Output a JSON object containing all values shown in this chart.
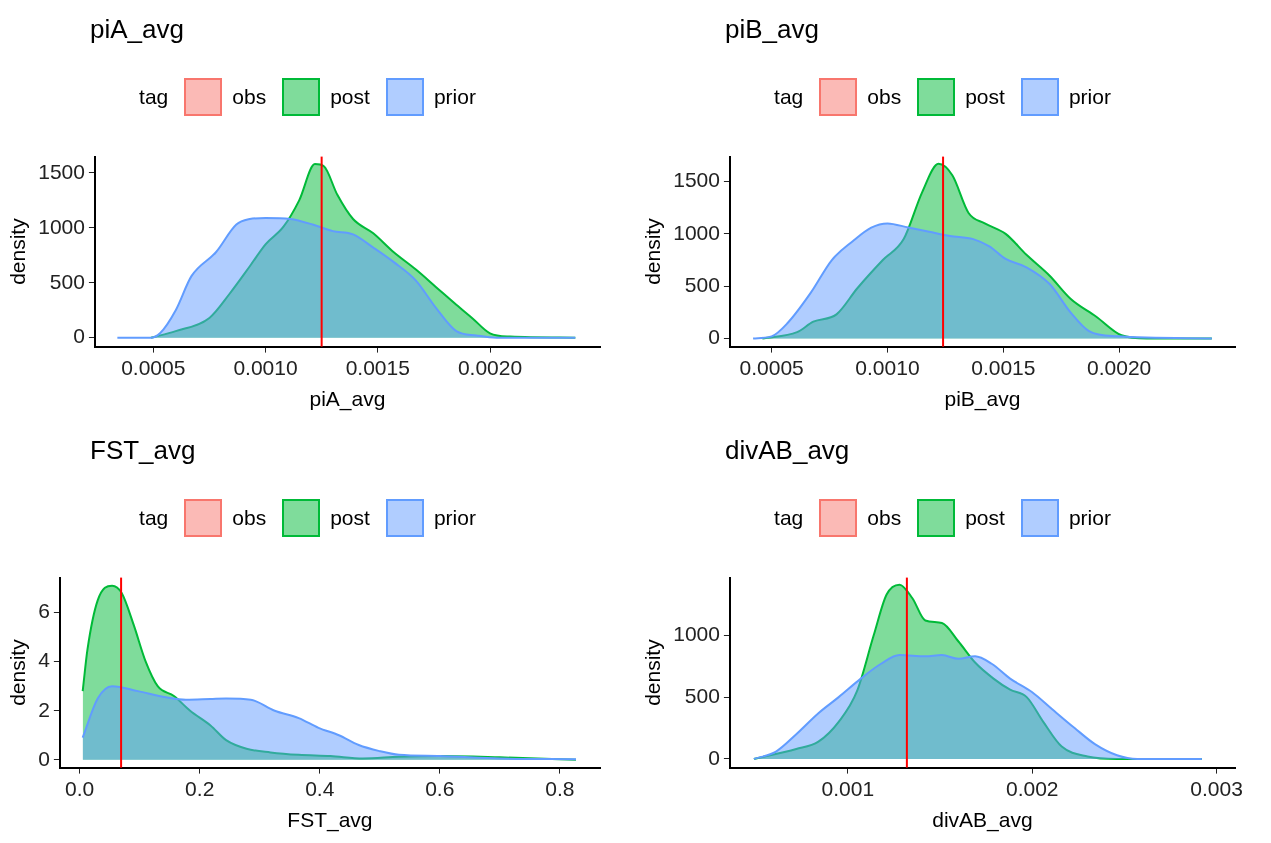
{
  "chart_data": [
    {
      "type": "area",
      "title": "piA_avg",
      "xlabel": "piA_avg",
      "ylabel": "density",
      "legend_title": "tag",
      "legend": "top",
      "grid": false,
      "xlim": [
        0.00024,
        0.00249
      ],
      "ylim": [
        -81,
        1648
      ],
      "xticks": [
        {
          "value": 0.0005,
          "label": "0.0005"
        },
        {
          "value": 0.001,
          "label": "0.0010"
        },
        {
          "value": 0.0015,
          "label": "0.0015"
        },
        {
          "value": 0.002,
          "label": "0.0020"
        }
      ],
      "yticks": [
        0,
        500,
        1000,
        1500
      ],
      "series": [
        {
          "name": "obs",
          "color": "#f8766d"
        },
        {
          "name": "post",
          "color": "#00ba38",
          "x": [
            0.00049,
            0.0006,
            0.00075,
            0.00084,
            0.00093,
            0.001,
            0.00108,
            0.00115,
            0.00122,
            0.00126,
            0.00132,
            0.00139,
            0.00148,
            0.00157,
            0.00167,
            0.00176,
            0.00185,
            0.00192,
            0.002,
            0.00209,
            0.00238
          ],
          "values": [
            0,
            60,
            180,
            400,
            650,
            850,
            1010,
            1250,
            1580,
            1560,
            1300,
            1080,
            950,
            780,
            620,
            460,
            300,
            180,
            40,
            10,
            0
          ]
        },
        {
          "name": "prior",
          "color": "#619cff",
          "x": [
            0.00034,
            0.00049,
            0.00053,
            0.0006,
            0.00067,
            0.00078,
            0.00087,
            0.00093,
            0.001,
            0.00111,
            0.00121,
            0.0013,
            0.00139,
            0.00148,
            0.00157,
            0.00167,
            0.00176,
            0.00185,
            0.00194,
            0.00203,
            0.00238
          ],
          "values": [
            0,
            0,
            40,
            250,
            560,
            780,
            1030,
            1080,
            1090,
            1080,
            1030,
            970,
            940,
            820,
            690,
            520,
            270,
            60,
            20,
            0,
            0
          ]
        }
      ],
      "ref_lines": [
        {
          "axis": "x",
          "value": 0.00125,
          "color": "#ff0000"
        }
      ]
    },
    {
      "type": "area",
      "title": "piB_avg",
      "xlabel": "piB_avg",
      "ylabel": "density",
      "legend_title": "tag",
      "legend": "top",
      "grid": false,
      "xlim": [
        0.00032,
        0.0025
      ],
      "ylim": [
        -78,
        1739
      ],
      "xticks": [
        {
          "value": 0.0005,
          "label": "0.0005"
        },
        {
          "value": 0.001,
          "label": "0.0010"
        },
        {
          "value": 0.0015,
          "label": "0.0015"
        },
        {
          "value": 0.002,
          "label": "0.0020"
        }
      ],
      "yticks": [
        0,
        500,
        1000,
        1500
      ],
      "series": [
        {
          "name": "obs",
          "color": "#f8766d"
        },
        {
          "name": "post",
          "color": "#00ba38",
          "x": [
            0.00046,
            0.00061,
            0.00068,
            0.00078,
            0.00087,
            0.00098,
            0.00107,
            0.00115,
            0.00122,
            0.00128,
            0.00135,
            0.00142,
            0.00151,
            0.0016,
            0.0017,
            0.00179,
            0.0019,
            0.00201,
            0.00212,
            0.0024
          ],
          "values": [
            0,
            60,
            160,
            230,
            480,
            750,
            950,
            1400,
            1670,
            1560,
            1200,
            1100,
            1000,
            800,
            600,
            380,
            210,
            30,
            0,
            0
          ]
        },
        {
          "name": "prior",
          "color": "#619cff",
          "x": [
            0.00042,
            0.0005,
            0.00057,
            0.00067,
            0.00076,
            0.00085,
            0.00093,
            0.001,
            0.00109,
            0.00118,
            0.00127,
            0.00137,
            0.00144,
            0.00151,
            0.0016,
            0.0017,
            0.00179,
            0.00187,
            0.00199,
            0.0024
          ],
          "values": [
            0,
            20,
            150,
            440,
            750,
            930,
            1060,
            1100,
            1060,
            1020,
            980,
            950,
            880,
            760,
            680,
            520,
            250,
            70,
            20,
            0
          ]
        }
      ],
      "ref_lines": [
        {
          "axis": "x",
          "value": 0.00124,
          "color": "#ff0000"
        }
      ]
    },
    {
      "type": "area",
      "title": "FST_avg",
      "xlabel": "FST_avg",
      "ylabel": "density",
      "legend_title": "tag",
      "legend": "top",
      "grid": false,
      "xlim": [
        -0.033,
        0.867
      ],
      "ylim": [
        -0.32,
        7.43
      ],
      "xticks": [
        {
          "value": 0,
          "label": "0.0"
        },
        {
          "value": 0.2,
          "label": "0.2"
        },
        {
          "value": 0.4,
          "label": "0.4"
        },
        {
          "value": 0.6,
          "label": "0.6"
        },
        {
          "value": 0.8,
          "label": "0.8"
        }
      ],
      "yticks": [
        0,
        2,
        4,
        6
      ],
      "series": [
        {
          "name": "obs",
          "color": "#f8766d"
        },
        {
          "name": "post",
          "color": "#00ba38",
          "x": [
            0.005,
            0.013,
            0.03,
            0.054,
            0.07,
            0.09,
            0.11,
            0.13,
            0.157,
            0.184,
            0.218,
            0.244,
            0.278,
            0.318,
            0.365,
            0.418,
            0.472,
            0.532,
            0.6,
            0.7,
            0.827
          ],
          "values": [
            2.8,
            4.5,
            6.5,
            7.1,
            6.8,
            5.5,
            4.0,
            3.0,
            2.6,
            2.0,
            1.4,
            0.8,
            0.45,
            0.3,
            0.2,
            0.15,
            0.05,
            0.12,
            0.15,
            0.1,
            0
          ]
        },
        {
          "name": "prior",
          "color": "#619cff",
          "x": [
            0.005,
            0.03,
            0.054,
            0.097,
            0.144,
            0.177,
            0.218,
            0.244,
            0.285,
            0.325,
            0.365,
            0.398,
            0.432,
            0.465,
            0.5,
            0.532,
            0.6,
            0.7,
            0.827
          ],
          "values": [
            0.9,
            2.5,
            3.0,
            2.8,
            2.55,
            2.45,
            2.48,
            2.5,
            2.45,
            2.0,
            1.7,
            1.3,
            1.0,
            0.6,
            0.35,
            0.2,
            0.15,
            0.05,
            0.02
          ]
        }
      ],
      "ref_lines": [
        {
          "axis": "x",
          "value": 0.069,
          "color": "#ff0000"
        }
      ]
    },
    {
      "type": "area",
      "title": "divAB_avg",
      "xlabel": "divAB_avg",
      "ylabel": "density",
      "legend_title": "tag",
      "legend": "top",
      "grid": false,
      "xlim": [
        0.00036,
        0.0031
      ],
      "ylim": [
        -70,
        1467
      ],
      "xticks": [
        {
          "value": 0.001,
          "label": "0.001"
        },
        {
          "value": 0.002,
          "label": "0.002"
        },
        {
          "value": 0.003,
          "label": "0.003"
        }
      ],
      "yticks": [
        0,
        500,
        1000
      ],
      "series": [
        {
          "name": "obs",
          "color": "#f8766d"
        },
        {
          "name": "post",
          "color": "#00ba38",
          "x": [
            0.00049,
            0.00072,
            0.00084,
            0.00095,
            0.00105,
            0.00114,
            0.00121,
            0.00128,
            0.00135,
            0.00142,
            0.00151,
            0.0016,
            0.00169,
            0.00179,
            0.00188,
            0.00197,
            0.00206,
            0.00216,
            0.0023,
            0.00246,
            0.00292
          ],
          "values": [
            0,
            80,
            140,
            300,
            550,
            1000,
            1330,
            1410,
            1300,
            1120,
            1100,
            950,
            780,
            650,
            560,
            500,
            300,
            100,
            20,
            0,
            0
          ]
        },
        {
          "name": "prior",
          "color": "#619cff",
          "x": [
            0.00049,
            0.00061,
            0.00072,
            0.00084,
            0.00095,
            0.00107,
            0.00118,
            0.00128,
            0.00142,
            0.00151,
            0.0016,
            0.00169,
            0.00178,
            0.00188,
            0.002,
            0.00211,
            0.00223,
            0.00234,
            0.00246,
            0.00257,
            0.00292
          ],
          "values": [
            0,
            60,
            200,
            370,
            500,
            650,
            770,
            840,
            830,
            840,
            810,
            830,
            770,
            650,
            540,
            400,
            250,
            120,
            30,
            0,
            0
          ]
        }
      ],
      "ref_lines": [
        {
          "axis": "x",
          "value": 0.00132,
          "color": "#ff0000"
        }
      ]
    }
  ]
}
